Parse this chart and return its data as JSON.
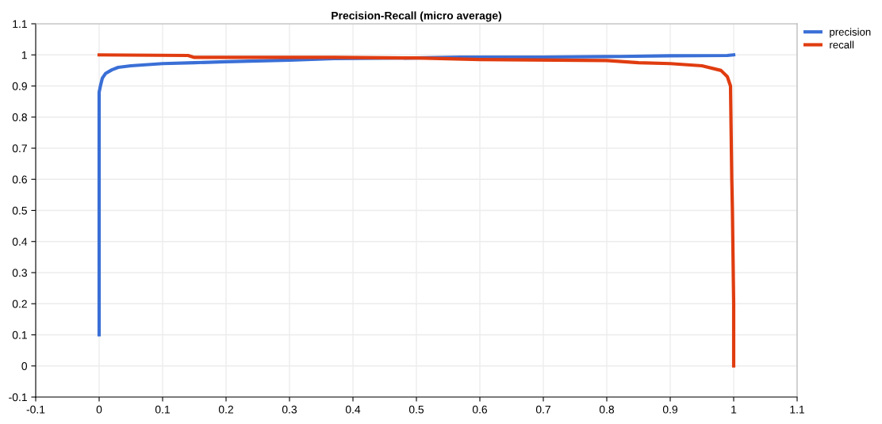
{
  "chart_data": {
    "type": "line",
    "title": "Precision-Recall (micro average)",
    "xlim": [
      -0.1,
      1.1
    ],
    "xticks": [
      -0.1,
      0,
      0.1,
      0.2,
      0.3,
      0.4,
      0.5,
      0.6,
      0.7,
      0.8,
      0.9,
      1,
      1.1
    ],
    "ylim": [
      -0.1,
      1.1
    ],
    "yticks": [
      -0.1,
      0,
      0.1,
      0.2,
      0.3,
      0.4,
      0.5,
      0.6,
      0.7,
      0.8,
      0.9,
      1,
      1.1
    ],
    "grid": true,
    "legend": "top right",
    "marker": "none",
    "line_style": "solid",
    "series": [
      {
        "name": "precision",
        "color": "#3a6fd6",
        "x": [
          0,
          0,
          0.002,
          0.005,
          0.01,
          0.02,
          0.03,
          0.05,
          0.1,
          0.15,
          0.2,
          0.3,
          0.37,
          0.5,
          0.57,
          0.7,
          0.82,
          0.9,
          0.99,
          1.0
        ],
        "values": [
          0.1,
          0.88,
          0.9,
          0.925,
          0.94,
          0.952,
          0.96,
          0.965,
          0.972,
          0.975,
          0.978,
          0.983,
          0.988,
          0.99,
          0.993,
          0.993,
          0.995,
          0.997,
          0.998,
          1.0
        ]
      },
      {
        "name": "recall",
        "color": "#e03c10",
        "x": [
          0,
          0.14,
          0.15,
          0.37,
          0.5,
          0.6,
          0.8,
          0.85,
          0.9,
          0.95,
          0.98,
          0.99,
          0.995,
          0.997,
          0.998,
          1.0,
          1.0
        ],
        "values": [
          1.0,
          0.998,
          0.992,
          0.992,
          0.99,
          0.985,
          0.982,
          0.975,
          0.972,
          0.965,
          0.95,
          0.93,
          0.9,
          0.6,
          0.5,
          0.2,
          0
        ]
      }
    ]
  }
}
